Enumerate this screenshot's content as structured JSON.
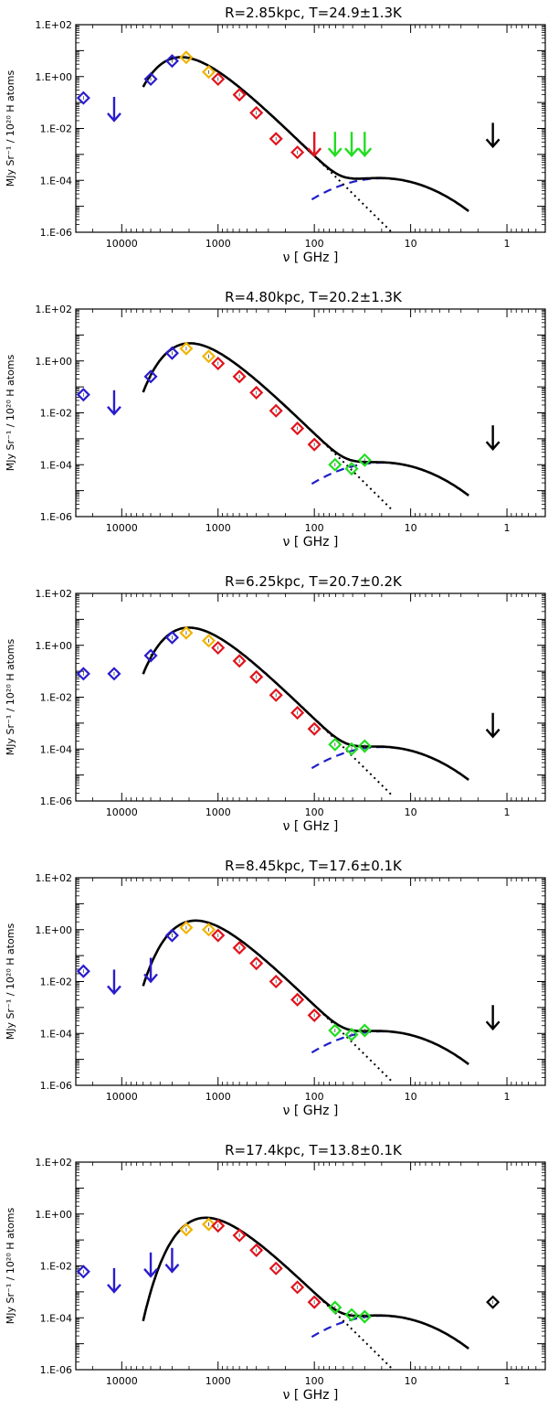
{
  "figure": {
    "ylabel": "MJy Sr⁻¹ / 10²⁰ H atoms",
    "xlabel": "ν [ GHz ]"
  },
  "colors": {
    "iras": "#2a1ccc",
    "dirbe": "#f0b400",
    "firas": "#e0141e",
    "wmap": "#22dd22",
    "other": "#000000",
    "model": "#000000",
    "free_free": "#1e1ec8",
    "dust_tail": "#000000"
  },
  "chart_data": [
    {
      "type": "scatter",
      "title": "R=2.85kpc, T=24.9±1.3K",
      "xscale": "log",
      "xreversed": true,
      "xlim": [
        30000,
        0.4
      ],
      "yscale": "log",
      "ylim": [
        1e-06,
        100
      ],
      "xticks": [
        10000,
        1000,
        100,
        10,
        1
      ],
      "xtick_labels": [
        "10000",
        "1000",
        "100",
        "10",
        "1"
      ],
      "yticks": [
        1e-06,
        0.0001,
        0.01,
        1,
        100
      ],
      "ytick_labels": [
        "1.E-06",
        "1.E-04",
        "1.E-02",
        "1.E+00",
        "1.E+02"
      ],
      "model": {
        "T": 24.9,
        "amp": 3.5,
        "spin_amp": 0.00012
      },
      "points": [
        {
          "x": 25000,
          "y": 0.15,
          "kind": "iras"
        },
        {
          "x": 5000,
          "y": 0.8,
          "kind": "iras"
        },
        {
          "x": 3000,
          "y": 4.0,
          "kind": "iras"
        },
        {
          "x": 2140,
          "y": 5.5,
          "kind": "dirbe"
        },
        {
          "x": 1250,
          "y": 1.5,
          "kind": "dirbe"
        },
        {
          "x": 1000,
          "y": 0.8,
          "kind": "firas"
        },
        {
          "x": 600,
          "y": 0.2,
          "kind": "firas"
        },
        {
          "x": 400,
          "y": 0.04,
          "kind": "firas"
        },
        {
          "x": 250,
          "y": 0.004,
          "kind": "firas"
        },
        {
          "x": 150,
          "y": 0.0012,
          "kind": "firas"
        }
      ],
      "upper_limits": [
        {
          "x": 12000,
          "y": 0.02,
          "kind": "iras"
        },
        {
          "x": 100,
          "y": 0.0009,
          "kind": "firas"
        },
        {
          "x": 61,
          "y": 0.0009,
          "kind": "wmap"
        },
        {
          "x": 41,
          "y": 0.0009,
          "kind": "wmap"
        },
        {
          "x": 30,
          "y": 0.0009,
          "kind": "wmap"
        },
        {
          "x": 1.4,
          "y": 0.002,
          "kind": "other"
        }
      ]
    },
    {
      "type": "scatter",
      "title": "R=4.80kpc, T=20.2±1.3K",
      "xscale": "log",
      "xreversed": true,
      "xlim": [
        30000,
        0.4
      ],
      "yscale": "log",
      "ylim": [
        1e-06,
        100
      ],
      "xticks": [
        10000,
        1000,
        100,
        10,
        1
      ],
      "xtick_labels": [
        "10000",
        "1000",
        "100",
        "10",
        "1"
      ],
      "yticks": [
        1e-06,
        0.0001,
        0.01,
        1,
        100
      ],
      "ytick_labels": [
        "1.E-06",
        "1.E-04",
        "1.E-02",
        "1.E+00",
        "1.E+02"
      ],
      "model": {
        "T": 20.2,
        "amp": 3.0,
        "spin_amp": 0.00012
      },
      "points": [
        {
          "x": 25000,
          "y": 0.05,
          "kind": "iras"
        },
        {
          "x": 5000,
          "y": 0.25,
          "kind": "iras"
        },
        {
          "x": 3000,
          "y": 2.0,
          "kind": "iras"
        },
        {
          "x": 2140,
          "y": 3.0,
          "kind": "dirbe"
        },
        {
          "x": 1250,
          "y": 1.5,
          "kind": "dirbe"
        },
        {
          "x": 1000,
          "y": 0.8,
          "kind": "firas"
        },
        {
          "x": 600,
          "y": 0.25,
          "kind": "firas"
        },
        {
          "x": 400,
          "y": 0.06,
          "kind": "firas"
        },
        {
          "x": 250,
          "y": 0.012,
          "kind": "firas"
        },
        {
          "x": 150,
          "y": 0.0025,
          "kind": "firas"
        },
        {
          "x": 100,
          "y": 0.0006,
          "kind": "firas"
        },
        {
          "x": 61,
          "y": 0.0001,
          "kind": "wmap"
        },
        {
          "x": 41,
          "y": 7e-05,
          "kind": "wmap"
        },
        {
          "x": 30,
          "y": 0.00015,
          "kind": "wmap"
        }
      ],
      "upper_limits": [
        {
          "x": 12000,
          "y": 0.009,
          "kind": "iras"
        },
        {
          "x": 1.4,
          "y": 0.0004,
          "kind": "other"
        }
      ]
    },
    {
      "type": "scatter",
      "title": "R=6.25kpc, T=20.7±0.2K",
      "xscale": "log",
      "xreversed": true,
      "xlim": [
        30000,
        0.4
      ],
      "yscale": "log",
      "ylim": [
        1e-06,
        100
      ],
      "xticks": [
        10000,
        1000,
        100,
        10,
        1
      ],
      "xtick_labels": [
        "10000",
        "1000",
        "100",
        "10",
        "1"
      ],
      "yticks": [
        1e-06,
        0.0001,
        0.01,
        1,
        100
      ],
      "ytick_labels": [
        "1.E-06",
        "1.E-04",
        "1.E-02",
        "1.E+00",
        "1.E+02"
      ],
      "model": {
        "T": 20.7,
        "amp": 3.0,
        "spin_amp": 0.00012
      },
      "points": [
        {
          "x": 25000,
          "y": 0.08,
          "kind": "iras"
        },
        {
          "x": 12000,
          "y": 0.08,
          "kind": "iras"
        },
        {
          "x": 5000,
          "y": 0.4,
          "kind": "iras"
        },
        {
          "x": 3000,
          "y": 2.0,
          "kind": "iras"
        },
        {
          "x": 2140,
          "y": 3.0,
          "kind": "dirbe"
        },
        {
          "x": 1250,
          "y": 1.5,
          "kind": "dirbe"
        },
        {
          "x": 1000,
          "y": 0.8,
          "kind": "firas"
        },
        {
          "x": 600,
          "y": 0.25,
          "kind": "firas"
        },
        {
          "x": 400,
          "y": 0.06,
          "kind": "firas"
        },
        {
          "x": 250,
          "y": 0.012,
          "kind": "firas"
        },
        {
          "x": 150,
          "y": 0.0025,
          "kind": "firas"
        },
        {
          "x": 100,
          "y": 0.0006,
          "kind": "firas"
        },
        {
          "x": 61,
          "y": 0.00015,
          "kind": "wmap"
        },
        {
          "x": 41,
          "y": 0.0001,
          "kind": "wmap"
        },
        {
          "x": 30,
          "y": 0.00013,
          "kind": "wmap"
        }
      ],
      "upper_limits": [
        {
          "x": 1.4,
          "y": 0.0003,
          "kind": "other"
        }
      ]
    },
    {
      "type": "scatter",
      "title": "R=8.45kpc, T=17.6±0.1K",
      "xscale": "log",
      "xreversed": true,
      "xlim": [
        30000,
        0.4
      ],
      "yscale": "log",
      "ylim": [
        1e-06,
        100
      ],
      "xticks": [
        10000,
        1000,
        100,
        10,
        1
      ],
      "xtick_labels": [
        "10000",
        "1000",
        "100",
        "10",
        "1"
      ],
      "yticks": [
        1e-06,
        0.0001,
        0.01,
        1,
        100
      ],
      "ytick_labels": [
        "1.E-06",
        "1.E-04",
        "1.E-02",
        "1.E+00",
        "1.E+02"
      ],
      "model": {
        "T": 17.6,
        "amp": 1.4,
        "spin_amp": 0.00012
      },
      "points": [
        {
          "x": 25000,
          "y": 0.025,
          "kind": "iras"
        },
        {
          "x": 3000,
          "y": 0.6,
          "kind": "iras"
        },
        {
          "x": 2140,
          "y": 1.2,
          "kind": "dirbe"
        },
        {
          "x": 1250,
          "y": 1.0,
          "kind": "dirbe"
        },
        {
          "x": 1000,
          "y": 0.6,
          "kind": "firas"
        },
        {
          "x": 600,
          "y": 0.2,
          "kind": "firas"
        },
        {
          "x": 400,
          "y": 0.05,
          "kind": "firas"
        },
        {
          "x": 250,
          "y": 0.01,
          "kind": "firas"
        },
        {
          "x": 150,
          "y": 0.002,
          "kind": "firas"
        },
        {
          "x": 100,
          "y": 0.0005,
          "kind": "firas"
        },
        {
          "x": 61,
          "y": 0.00013,
          "kind": "wmap"
        },
        {
          "x": 41,
          "y": 9e-05,
          "kind": "wmap"
        },
        {
          "x": 30,
          "y": 0.00013,
          "kind": "wmap"
        }
      ],
      "upper_limits": [
        {
          "x": 12000,
          "y": 0.0035,
          "kind": "iras"
        },
        {
          "x": 5000,
          "y": 0.01,
          "kind": "iras"
        },
        {
          "x": 1.4,
          "y": 0.00015,
          "kind": "other"
        }
      ]
    },
    {
      "type": "scatter",
      "title": "R=17.4kpc, T=13.8±0.1K",
      "xscale": "log",
      "xreversed": true,
      "xlim": [
        30000,
        0.4
      ],
      "yscale": "log",
      "ylim": [
        1e-06,
        100
      ],
      "xticks": [
        10000,
        1000,
        100,
        10,
        1
      ],
      "xtick_labels": [
        "10000",
        "1000",
        "100",
        "10",
        "1"
      ],
      "yticks": [
        1e-06,
        0.0001,
        0.01,
        1,
        100
      ],
      "ytick_labels": [
        "1.E-06",
        "1.E-04",
        "1.E-02",
        "1.E+00",
        "1.E+02"
      ],
      "model": {
        "T": 13.8,
        "amp": 0.45,
        "spin_amp": 0.00012
      },
      "points": [
        {
          "x": 25000,
          "y": 0.006,
          "kind": "iras"
        },
        {
          "x": 2140,
          "y": 0.25,
          "kind": "dirbe"
        },
        {
          "x": 1250,
          "y": 0.4,
          "kind": "dirbe"
        },
        {
          "x": 1000,
          "y": 0.35,
          "kind": "firas"
        },
        {
          "x": 600,
          "y": 0.15,
          "kind": "firas"
        },
        {
          "x": 400,
          "y": 0.04,
          "kind": "firas"
        },
        {
          "x": 250,
          "y": 0.008,
          "kind": "firas"
        },
        {
          "x": 150,
          "y": 0.0015,
          "kind": "firas"
        },
        {
          "x": 100,
          "y": 0.0004,
          "kind": "firas"
        },
        {
          "x": 61,
          "y": 0.00025,
          "kind": "wmap"
        },
        {
          "x": 41,
          "y": 0.00013,
          "kind": "wmap"
        },
        {
          "x": 30,
          "y": 0.00011,
          "kind": "wmap"
        },
        {
          "x": 1.4,
          "y": 0.0004,
          "kind": "other"
        }
      ],
      "upper_limits": [
        {
          "x": 12000,
          "y": 0.001,
          "kind": "iras"
        },
        {
          "x": 5000,
          "y": 0.004,
          "kind": "iras"
        },
        {
          "x": 3000,
          "y": 0.006,
          "kind": "iras"
        }
      ]
    }
  ]
}
